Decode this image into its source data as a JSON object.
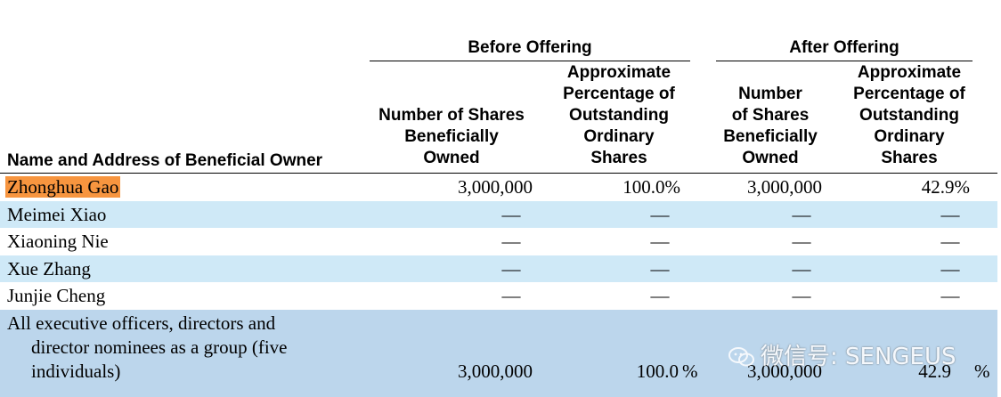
{
  "header": {
    "group_before": "Before Offering",
    "group_after": "After Offering",
    "col_name": "Name and Address of Beneficial Owner",
    "col_before_shares": [
      "Number of Shares",
      "Beneficially",
      "Owned"
    ],
    "col_before_pct": [
      "Approximate",
      "Percentage of",
      "Outstanding",
      "Ordinary",
      "Shares"
    ],
    "col_after_shares": [
      "Number",
      "of Shares",
      "Beneficially",
      "Owned"
    ],
    "col_after_pct": [
      "Approximate",
      "Percentage of",
      "Outstanding",
      "Ordinary",
      "Shares"
    ]
  },
  "rows": [
    {
      "name": "Zhonghua Gao",
      "before_shares": "3,000,000",
      "before_pct": "100.0%",
      "after_shares": "3,000,000",
      "after_pct": "42.9%"
    },
    {
      "name": "Meimei Xiao",
      "before_shares": "—",
      "before_pct": "—",
      "after_shares": "—",
      "after_pct": "—"
    },
    {
      "name": "Xiaoning Nie",
      "before_shares": "—",
      "before_pct": "—",
      "after_shares": "—",
      "after_pct": "—"
    },
    {
      "name": "Xue Zhang",
      "before_shares": "—",
      "before_pct": "—",
      "after_shares": "—",
      "after_pct": "—"
    },
    {
      "name": "Junjie Cheng",
      "before_shares": "—",
      "before_pct": "—",
      "after_shares": "—",
      "after_pct": "—"
    }
  ],
  "total": {
    "name_lines": [
      "All executive officers, directors and",
      "director nominees as a group (five",
      "individuals)"
    ],
    "before_shares": "3,000,000",
    "before_pct": "100.0",
    "before_pct_sign": "%",
    "after_shares": "3,000,000",
    "after_pct": "42.9",
    "after_pct_sign": "%"
  },
  "watermark": {
    "text": "微信号: SENGEUS",
    "icon": "wechat-icon"
  }
}
